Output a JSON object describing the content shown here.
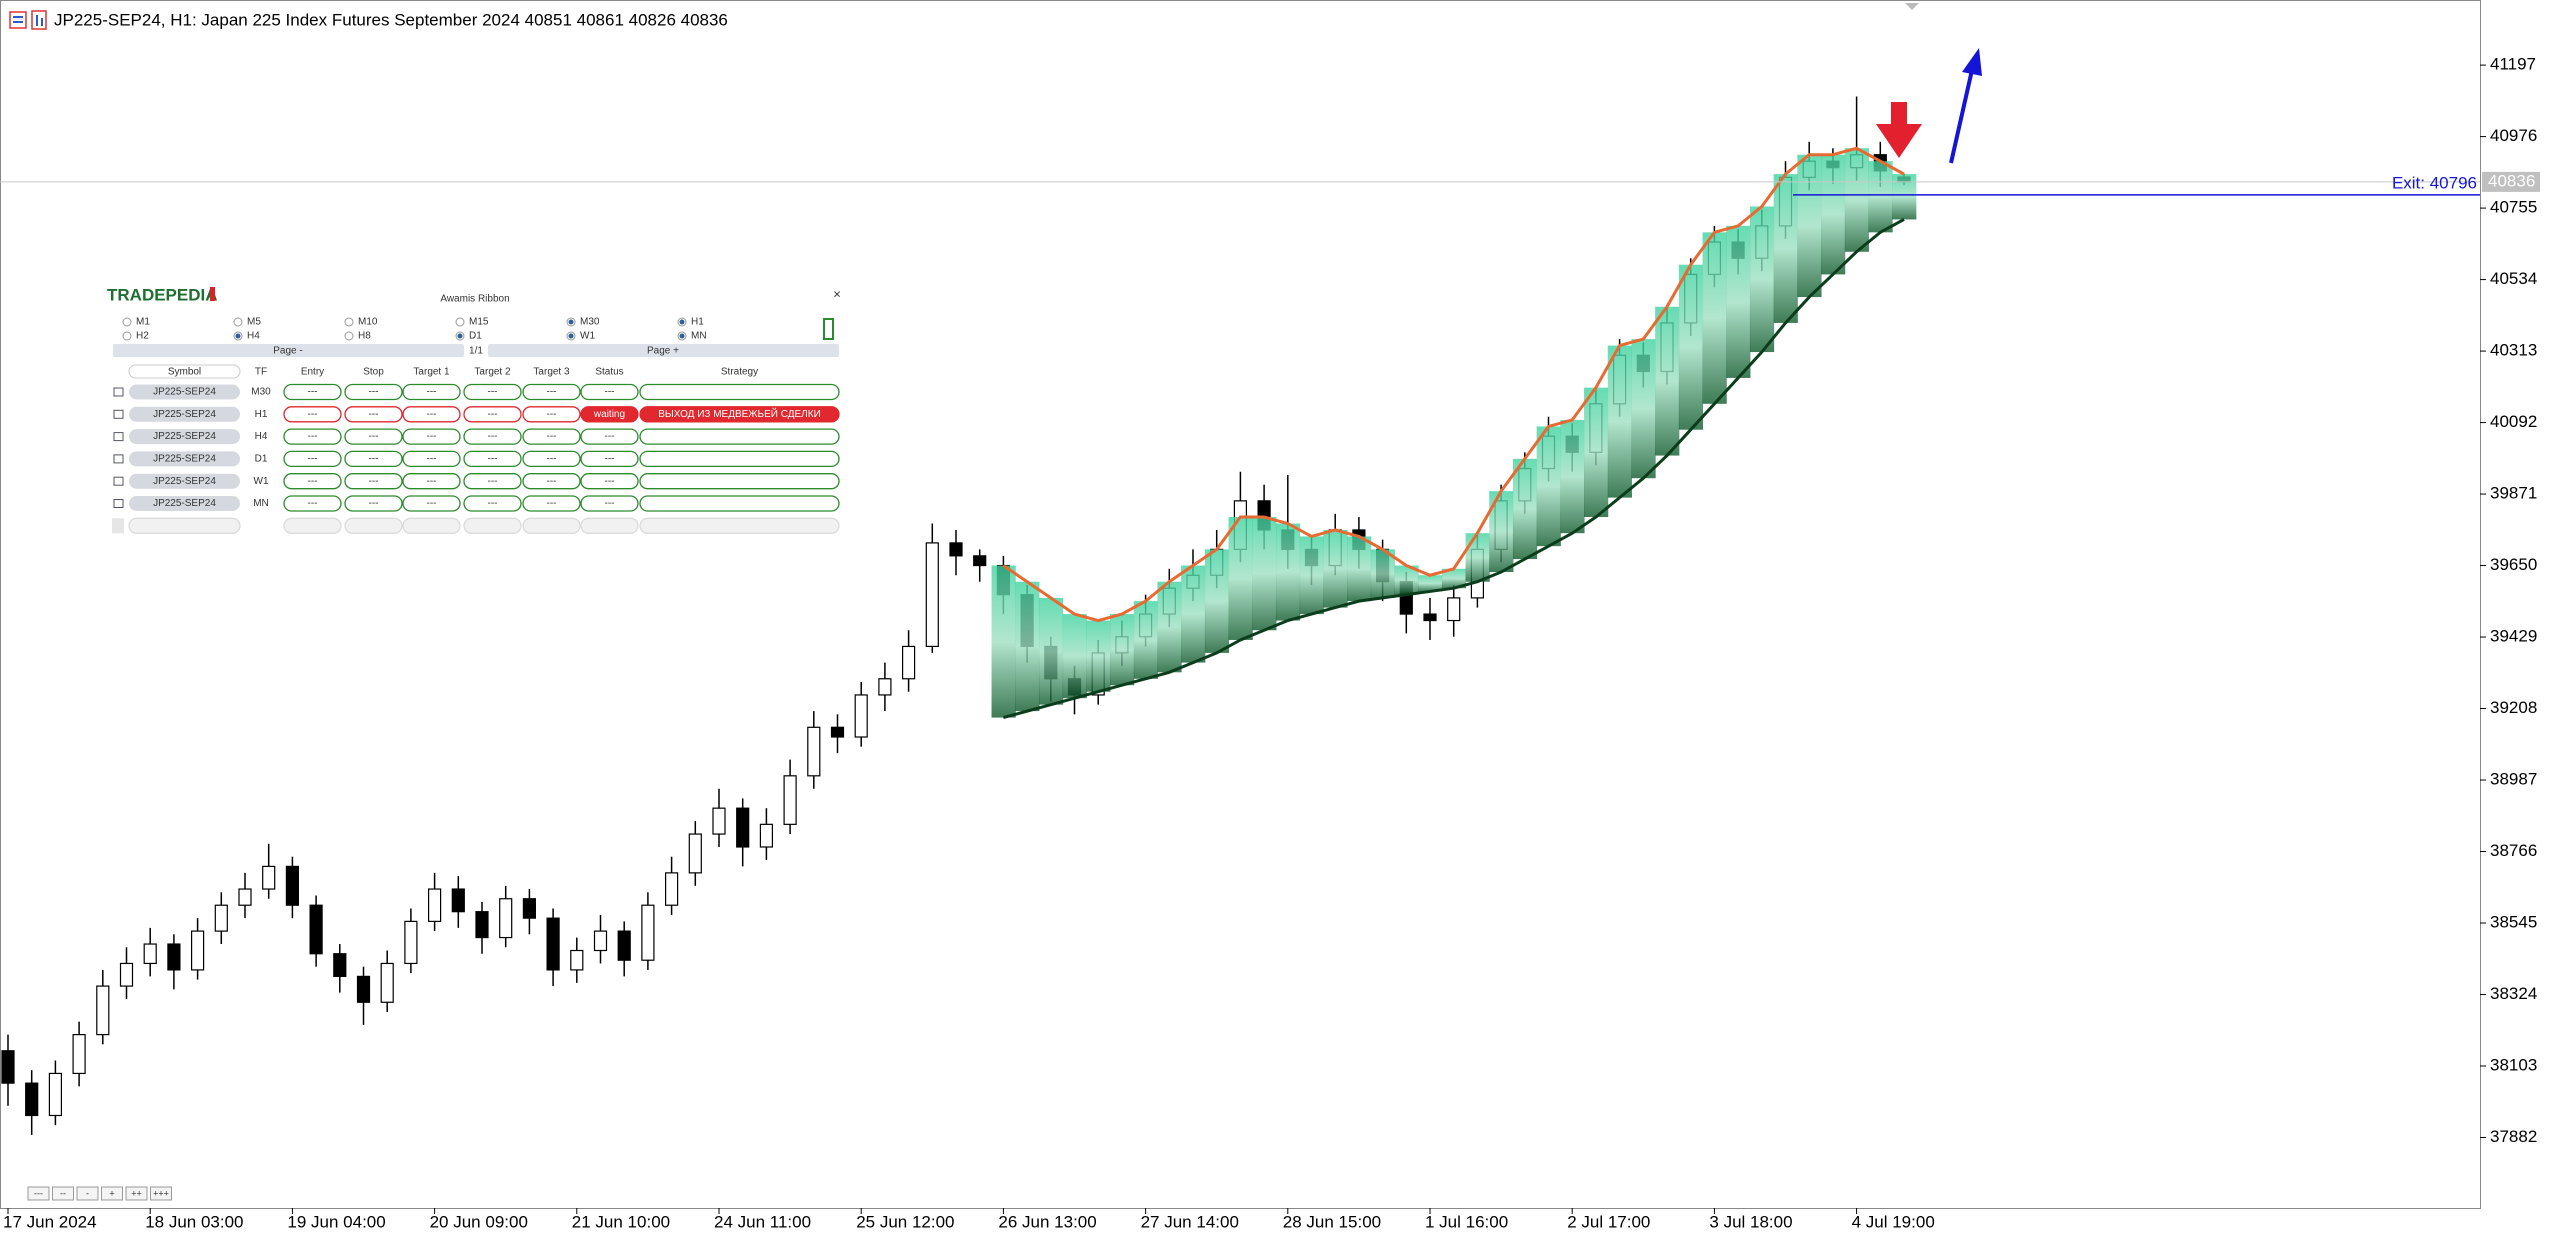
{
  "header": {
    "title": "JP225-SEP24, H1:  Japan 225 Index Futures September 2024  40851 40861 40826 40836"
  },
  "chart_data": {
    "type": "candlestick",
    "ylim": [
      37664,
      41389
    ],
    "yticks": [
      41197,
      40976,
      40755,
      40534,
      40313,
      40092,
      39871,
      39650,
      39429,
      39208,
      38987,
      38766,
      38545,
      38324,
      38103,
      37882
    ],
    "xticks": [
      {
        "value": 0,
        "label": "17 Jun 2024"
      },
      {
        "value": 6,
        "label": "18 Jun 03:00"
      },
      {
        "value": 12,
        "label": "19 Jun 04:00"
      },
      {
        "value": 18,
        "label": "20 Jun 09:00"
      },
      {
        "value": 24,
        "label": "21 Jun 10:00"
      },
      {
        "value": 30,
        "label": "24 Jun 11:00"
      },
      {
        "value": 36,
        "label": "25 Jun 12:00"
      },
      {
        "value": 42,
        "label": "26 Jun 13:00"
      },
      {
        "value": 48,
        "label": "27 Jun 14:00"
      },
      {
        "value": 54,
        "label": "28 Jun 15:00"
      },
      {
        "value": 60,
        "label": "1 Jul 16:00"
      },
      {
        "value": 66,
        "label": "2 Jul 17:00"
      },
      {
        "value": 72,
        "label": "3 Jul 18:00"
      },
      {
        "value": 78,
        "label": "4 Jul 19:00"
      }
    ],
    "open": [
      38150,
      38050,
      37950,
      38080,
      38200,
      38350,
      38420,
      38480,
      38400,
      38520,
      38600,
      38650,
      38720,
      38600,
      38450,
      38380,
      38300,
      38420,
      38550,
      38650,
      38580,
      38500,
      38620,
      38560,
      38400,
      38460,
      38520,
      38430,
      38600,
      38700,
      38820,
      38900,
      38780,
      38850,
      39000,
      39150,
      39120,
      39250,
      39300,
      39400,
      39720,
      39680,
      39650,
      39560,
      39400,
      39300,
      39250,
      39380,
      39430,
      39500,
      39580,
      39620,
      39700,
      39850,
      39760,
      39700,
      39650,
      39760,
      39700,
      39600,
      39500,
      39480,
      39550,
      39700,
      39850,
      39950,
      40050,
      40000,
      40150,
      40300,
      40250,
      40400,
      40550,
      40650,
      40600,
      40700,
      40850,
      40900,
      40880,
      40920,
      40851
    ],
    "high": [
      38200,
      38090,
      38120,
      38240,
      38400,
      38470,
      38530,
      38510,
      38560,
      38640,
      38700,
      38790,
      38750,
      38630,
      38480,
      38410,
      38460,
      38590,
      38700,
      38690,
      38610,
      38660,
      38650,
      38590,
      38500,
      38570,
      38550,
      38640,
      38750,
      38860,
      38960,
      38930,
      38900,
      39050,
      39200,
      39190,
      39290,
      39350,
      39450,
      39780,
      39760,
      39700,
      39680,
      39590,
      39430,
      39340,
      39420,
      39480,
      39560,
      39640,
      39700,
      39760,
      39940,
      39900,
      39930,
      39740,
      39810,
      39800,
      39730,
      39630,
      39550,
      39590,
      39750,
      39900,
      40000,
      40110,
      40090,
      40200,
      40350,
      40340,
      40450,
      40600,
      40700,
      40690,
      40750,
      40900,
      40960,
      40940,
      41100,
      40960,
      40861
    ],
    "low": [
      37980,
      37890,
      37920,
      38040,
      38170,
      38310,
      38380,
      38340,
      38370,
      38480,
      38560,
      38620,
      38560,
      38410,
      38330,
      38230,
      38270,
      38390,
      38520,
      38530,
      38450,
      38470,
      38510,
      38350,
      38360,
      38420,
      38380,
      38400,
      38570,
      38660,
      38780,
      38720,
      38740,
      38820,
      38960,
      39070,
      39090,
      39200,
      39260,
      39380,
      39620,
      39600,
      39500,
      39350,
      39230,
      39190,
      39220,
      39340,
      39400,
      39460,
      39540,
      39580,
      39660,
      39700,
      39640,
      39590,
      39620,
      39640,
      39540,
      39440,
      39420,
      39430,
      39520,
      39660,
      39810,
      39910,
      39940,
      39960,
      40110,
      40200,
      40210,
      40360,
      40510,
      40550,
      40560,
      40660,
      40810,
      40830,
      40840,
      40820,
      40826
    ],
    "close": [
      38050,
      37950,
      38080,
      38200,
      38350,
      38420,
      38480,
      38400,
      38520,
      38600,
      38650,
      38720,
      38600,
      38450,
      38380,
      38300,
      38420,
      38550,
      38650,
      38580,
      38500,
      38620,
      38560,
      38400,
      38460,
      38520,
      38430,
      38600,
      38700,
      38820,
      38900,
      38780,
      38850,
      39000,
      39150,
      39120,
      39250,
      39300,
      39400,
      39720,
      39680,
      39650,
      39560,
      39400,
      39300,
      39250,
      39380,
      39430,
      39500,
      39580,
      39620,
      39700,
      39850,
      39760,
      39700,
      39650,
      39760,
      39700,
      39600,
      39500,
      39480,
      39550,
      39700,
      39850,
      39950,
      40050,
      40000,
      40150,
      40300,
      40250,
      40400,
      40550,
      40650,
      40600,
      40700,
      40850,
      40900,
      40880,
      40920,
      40870,
      40836
    ],
    "ribbon": {
      "upper": [
        null,
        null,
        null,
        null,
        null,
        null,
        null,
        null,
        null,
        null,
        null,
        null,
        null,
        null,
        null,
        null,
        null,
        null,
        null,
        null,
        null,
        null,
        null,
        null,
        null,
        null,
        null,
        null,
        null,
        null,
        null,
        null,
        null,
        null,
        null,
        null,
        null,
        null,
        null,
        null,
        null,
        null,
        39650,
        39600,
        39550,
        39500,
        39480,
        39500,
        39540,
        39600,
        39650,
        39700,
        39800,
        39800,
        39780,
        39740,
        39760,
        39740,
        39700,
        39650,
        39620,
        39640,
        39750,
        39880,
        39980,
        40080,
        40100,
        40200,
        40330,
        40350,
        40450,
        40580,
        40680,
        40700,
        40760,
        40860,
        40920,
        40920,
        40940,
        40900,
        40860
      ],
      "lower": [
        null,
        null,
        null,
        null,
        null,
        null,
        null,
        null,
        null,
        null,
        null,
        null,
        null,
        null,
        null,
        null,
        null,
        null,
        null,
        null,
        null,
        null,
        null,
        null,
        null,
        null,
        null,
        null,
        null,
        null,
        null,
        null,
        null,
        null,
        null,
        null,
        null,
        null,
        null,
        null,
        null,
        null,
        39180,
        39200,
        39220,
        39240,
        39260,
        39280,
        39300,
        39320,
        39350,
        39380,
        39420,
        39450,
        39480,
        39500,
        39520,
        39540,
        39550,
        39560,
        39570,
        39580,
        39600,
        39630,
        39670,
        39710,
        39750,
        39800,
        39860,
        39920,
        39990,
        40070,
        40150,
        40230,
        40310,
        40400,
        40480,
        40550,
        40620,
        40680,
        40720
      ]
    },
    "exit": {
      "label": "Exit: 40796",
      "value": 40796
    }
  },
  "panel": {
    "logo": "TRADEPEDIA",
    "title": "Awamis Ribbon",
    "close": "×",
    "timeframes": [
      {
        "label": "M1",
        "checked": false
      },
      {
        "label": "M5",
        "checked": false
      },
      {
        "label": "M10",
        "checked": false
      },
      {
        "label": "M15",
        "checked": false
      },
      {
        "label": "M30",
        "checked": true
      },
      {
        "label": "H1",
        "checked": true
      },
      {
        "label": "H2",
        "checked": false
      },
      {
        "label": "H4",
        "checked": true
      },
      {
        "label": "H8",
        "checked": false
      },
      {
        "label": "D1",
        "checked": true
      },
      {
        "label": "W1",
        "checked": true
      },
      {
        "label": "MN",
        "checked": true
      }
    ],
    "page_prev": "Page -",
    "page_info": "1/1",
    "page_next": "Page +",
    "table": {
      "header": [
        "Symbol",
        "TF",
        "Entry",
        "Stop",
        "Target 1",
        "Target 2",
        "Target 3",
        "Status",
        "Strategy"
      ],
      "rows": [
        {
          "cells": [
            "JP225-SEP24",
            "M30",
            "---",
            "---",
            "---",
            "---",
            "---",
            "---"
          ]
        },
        {
          "cells": [
            "JP225-SEP24",
            "H1",
            "---",
            "---",
            "---",
            "---",
            "---",
            "waiting",
            "ВЫХОД ИЗ МЕДВЕЖЬЕЙ СДЕЛКИ"
          ],
          "alert": true
        },
        {
          "cells": [
            "JP225-SEP24",
            "H4",
            "---",
            "---",
            "---",
            "---",
            "---",
            "---"
          ]
        },
        {
          "cells": [
            "JP225-SEP24",
            "D1",
            "---",
            "---",
            "---",
            "---",
            "---",
            "---"
          ]
        },
        {
          "cells": [
            "JP225-SEP24",
            "W1",
            "---",
            "---",
            "---",
            "---",
            "---",
            "---"
          ]
        },
        {
          "cells": [
            "JP225-SEP24",
            "MN",
            "---",
            "---",
            "---",
            "---",
            "---",
            "---"
          ]
        }
      ]
    }
  },
  "zoom_buttons": [
    "---",
    "--",
    "-",
    "+",
    "++",
    "+++"
  ]
}
